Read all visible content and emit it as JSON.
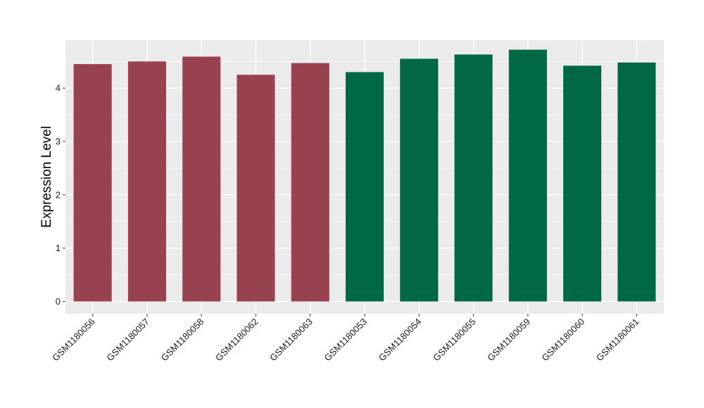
{
  "chart_data": {
    "type": "bar",
    "title": "",
    "xlabel": "",
    "ylabel": "Expression Level",
    "ylim": [
      -0.23,
      4.9
    ],
    "yticks": [
      0,
      1,
      2,
      3,
      4
    ],
    "grid": true,
    "panel_background": "#ebebeb",
    "grid_color": "#ffffff",
    "categories": [
      "GSM1180056",
      "GSM1180057",
      "GSM1180058",
      "GSM1180062",
      "GSM1180063",
      "GSM1180053",
      "GSM1180054",
      "GSM1180055",
      "GSM1180059",
      "GSM1180060",
      "GSM1180061"
    ],
    "values": [
      4.45,
      4.5,
      4.59,
      4.25,
      4.47,
      4.3,
      4.55,
      4.63,
      4.72,
      4.42,
      4.48
    ],
    "colors": [
      "#99424f",
      "#99424f",
      "#99424f",
      "#99424f",
      "#99424f",
      "#006843",
      "#006843",
      "#006843",
      "#006843",
      "#006843",
      "#006843"
    ]
  }
}
